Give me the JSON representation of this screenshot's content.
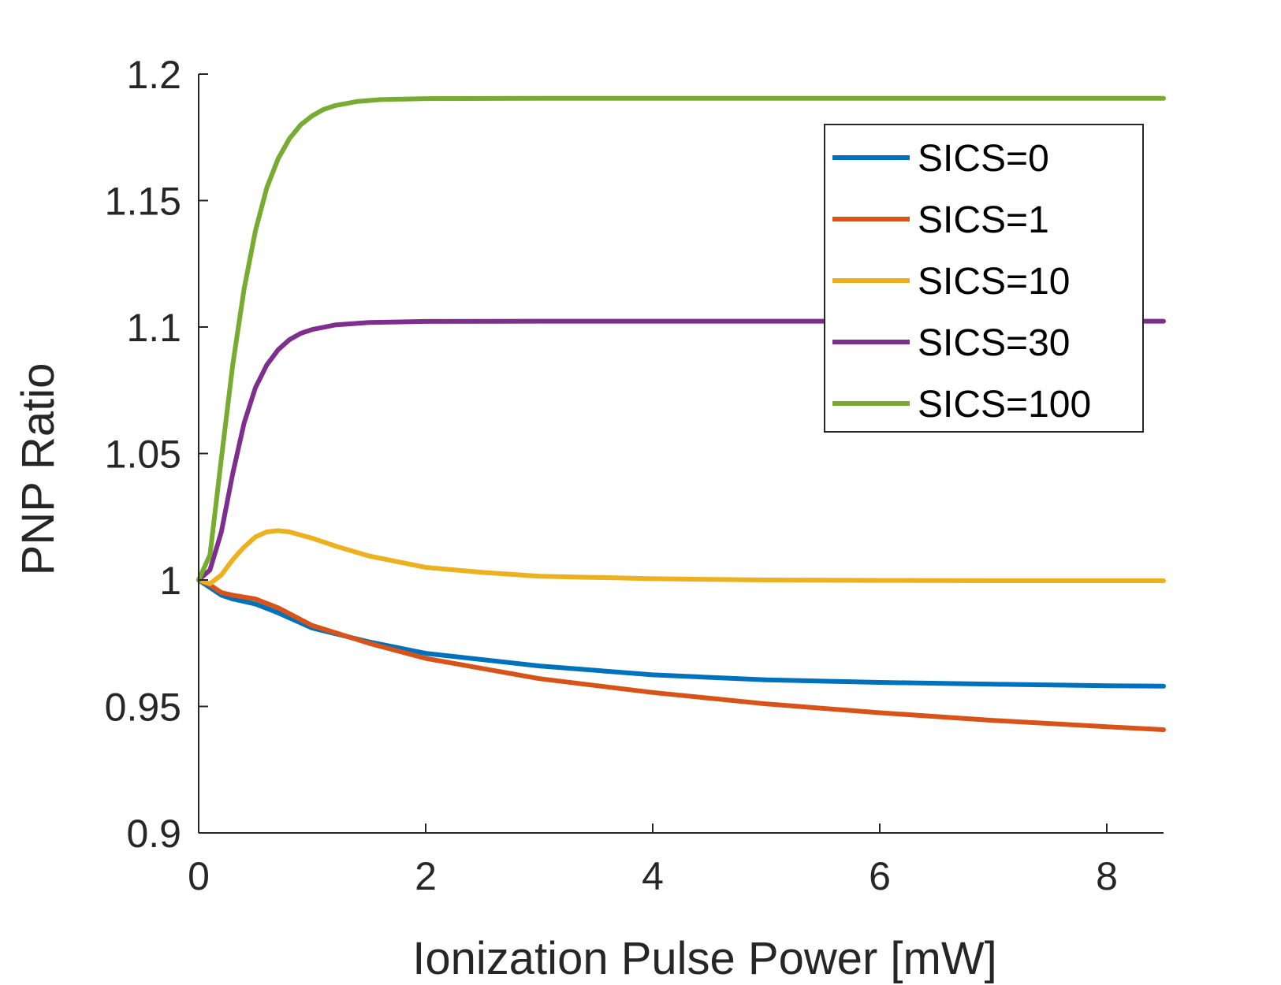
{
  "chart_data": {
    "type": "line",
    "title": "",
    "xlabel": "Ionization Pulse Power [mW]",
    "ylabel": "PNP Ratio",
    "xlim": [
      0,
      8.5
    ],
    "ylim": [
      0.9,
      1.2
    ],
    "xticks": [
      0,
      2,
      4,
      6,
      8
    ],
    "yticks": [
      0.9,
      0.95,
      1,
      1.05,
      1.1,
      1.15,
      1.2
    ],
    "xtick_labels": [
      "0",
      "2",
      "4",
      "6",
      "8"
    ],
    "ytick_labels": [
      "0.9",
      "0.95",
      "1",
      "1.05",
      "1.1",
      "1.15",
      "1.2"
    ],
    "grid": false,
    "legend_position": "top-right",
    "series": [
      {
        "name": "SICS=0",
        "color": "#0072BD",
        "x": [
          0,
          0.1,
          0.2,
          0.3,
          0.5,
          0.7,
          1.0,
          1.5,
          2.0,
          3.0,
          4.0,
          5.0,
          6.0,
          7.0,
          8.0,
          8.5
        ],
        "y": [
          1.0,
          0.997,
          0.994,
          0.9925,
          0.9905,
          0.987,
          0.981,
          0.9755,
          0.971,
          0.966,
          0.9625,
          0.9605,
          0.9595,
          0.9588,
          0.9582,
          0.958
        ]
      },
      {
        "name": "SICS=1",
        "color": "#D95319",
        "x": [
          0,
          0.1,
          0.2,
          0.3,
          0.5,
          0.7,
          1.0,
          1.5,
          2.0,
          3.0,
          4.0,
          5.0,
          6.0,
          7.0,
          8.0,
          8.5
        ],
        "y": [
          1.0,
          0.998,
          0.995,
          0.994,
          0.9925,
          0.989,
          0.982,
          0.975,
          0.969,
          0.961,
          0.9555,
          0.951,
          0.9475,
          0.9445,
          0.942,
          0.9408
        ]
      },
      {
        "name": "SICS=10",
        "color": "#EDB120",
        "x": [
          0,
          0.1,
          0.2,
          0.3,
          0.4,
          0.5,
          0.6,
          0.7,
          0.8,
          1.0,
          1.2,
          1.5,
          2.0,
          2.5,
          3.0,
          4.0,
          5.0,
          6.0,
          7.0,
          8.0,
          8.5
        ],
        "y": [
          1.0,
          0.9985,
          1.002,
          1.008,
          1.013,
          1.017,
          1.019,
          1.0195,
          1.019,
          1.0165,
          1.0135,
          1.0095,
          1.005,
          1.003,
          1.0015,
          1.0005,
          1.0,
          0.9998,
          0.9997,
          0.9997,
          0.9997
        ]
      },
      {
        "name": "SICS=30",
        "color": "#7E2F8E",
        "x": [
          0,
          0.1,
          0.2,
          0.3,
          0.4,
          0.5,
          0.6,
          0.7,
          0.8,
          0.9,
          1.0,
          1.2,
          1.5,
          2.0,
          3.0,
          4.0,
          5.0,
          6.0,
          7.0,
          8.0,
          8.5
        ],
        "y": [
          1.0,
          1.004,
          1.019,
          1.042,
          1.062,
          1.076,
          1.085,
          1.091,
          1.095,
          1.0975,
          1.099,
          1.1008,
          1.1018,
          1.1022,
          1.1023,
          1.1023,
          1.1023,
          1.1023,
          1.1023,
          1.1023,
          1.1023
        ]
      },
      {
        "name": "SICS=100",
        "color": "#77AC30",
        "x": [
          0,
          0.1,
          0.2,
          0.3,
          0.4,
          0.5,
          0.6,
          0.7,
          0.8,
          0.9,
          1.0,
          1.1,
          1.2,
          1.4,
          1.6,
          2.0,
          3.0,
          4.0,
          5.0,
          6.0,
          7.0,
          8.0,
          8.5
        ],
        "y": [
          1.0,
          1.01,
          1.048,
          1.085,
          1.115,
          1.138,
          1.155,
          1.1665,
          1.1745,
          1.18,
          1.1835,
          1.186,
          1.1875,
          1.1892,
          1.1899,
          1.1903,
          1.1904,
          1.1904,
          1.1904,
          1.1904,
          1.1904,
          1.1904,
          1.1904
        ]
      }
    ]
  }
}
